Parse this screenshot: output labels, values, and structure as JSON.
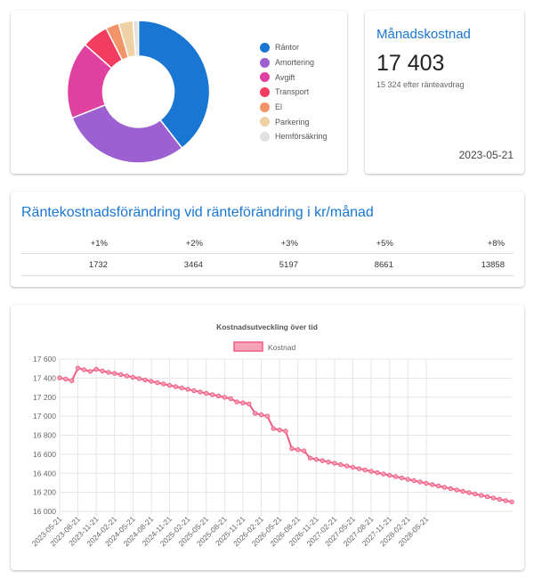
{
  "summary": {
    "legend": [
      {
        "label": "Räntor",
        "color": "#1976d2"
      },
      {
        "label": "Amortering",
        "color": "#9c60d0"
      },
      {
        "label": "Avgift",
        "color": "#e040a0"
      },
      {
        "label": "Transport",
        "color": "#f23d60"
      },
      {
        "label": "El",
        "color": "#f29468"
      },
      {
        "label": "Parkering",
        "color": "#eed2a6"
      },
      {
        "label": "Hemförsäkring",
        "color": "#e0e0e0"
      }
    ]
  },
  "monthly": {
    "title": "Månadskostnad",
    "value": "17 403",
    "subtitle": "15 324 efter ränteavdrag",
    "date": "2023-05-21"
  },
  "rate_change": {
    "title": "Räntekostnadsförändring vid ränteförändring i kr/månad",
    "headers": [
      "+1%",
      "+2%",
      "+3%",
      "+5%",
      "+8%"
    ],
    "values": [
      "1732",
      "3464",
      "5197",
      "8661",
      "13858"
    ]
  },
  "chart_data": [
    {
      "type": "pie",
      "categories": [
        "Räntor",
        "Amortering",
        "Avgift",
        "Transport",
        "El",
        "Parkering",
        "Hemförsäkring"
      ],
      "values": [
        39.5,
        29.5,
        17.5,
        6,
        3,
        3.3,
        1.2
      ],
      "colors": [
        "#1976d2",
        "#9c60d0",
        "#e040a0",
        "#f23d60",
        "#f29468",
        "#eed2a6",
        "#e0e0e0"
      ],
      "donut": true
    },
    {
      "type": "line",
      "title": "Kostnadsutveckling över tid",
      "series": [
        {
          "name": "Kostnad",
          "color": "#f25c82",
          "values": [
            17403,
            17390,
            17372,
            17505,
            17488,
            17470,
            17493,
            17474,
            17460,
            17449,
            17437,
            17423,
            17409,
            17395,
            17381,
            17366,
            17352,
            17338,
            17324,
            17310,
            17296,
            17282,
            17268,
            17254,
            17240,
            17226,
            17212,
            17198,
            17184,
            17150,
            17140,
            17128,
            17030,
            17015,
            17000,
            16870,
            16855,
            16842,
            16660,
            16648,
            16635,
            16560,
            16546,
            16533,
            16519,
            16505,
            16491,
            16477,
            16463,
            16449,
            16435,
            16421,
            16407,
            16393,
            16379,
            16365,
            16351,
            16337,
            16323,
            16309,
            16295,
            16281,
            16267,
            16253,
            16239,
            16225,
            16211,
            16197,
            16183,
            16169,
            16155,
            16141,
            16127,
            16113,
            16100
          ]
        }
      ],
      "x_tick_labels": [
        "2023-05-21",
        "2023-08-21",
        "2023-11-21",
        "2024-02-21",
        "2024-05-21",
        "2024-08-21",
        "2024-11-21",
        "2025-02-21",
        "2025-05-21",
        "2025-08-21",
        "2025-11-21",
        "2026-02-21",
        "2026-05-21",
        "2026-08-21",
        "2026-11-21",
        "2027-02-21",
        "2027-05-21",
        "2027-08-21",
        "2027-11-21",
        "2028-02-21",
        "2028-05-21"
      ],
      "y_ticks": [
        16000,
        16200,
        16400,
        16600,
        16800,
        17000,
        17200,
        17400,
        17600
      ],
      "y_tick_labels": [
        "16 000",
        "16 200",
        "16 400",
        "16 600",
        "16 800",
        "17 000",
        "17 200",
        "17 400",
        "17 600"
      ],
      "ylim": [
        16000,
        17600
      ],
      "xlabel": "",
      "ylabel": "",
      "legend": "top"
    }
  ]
}
